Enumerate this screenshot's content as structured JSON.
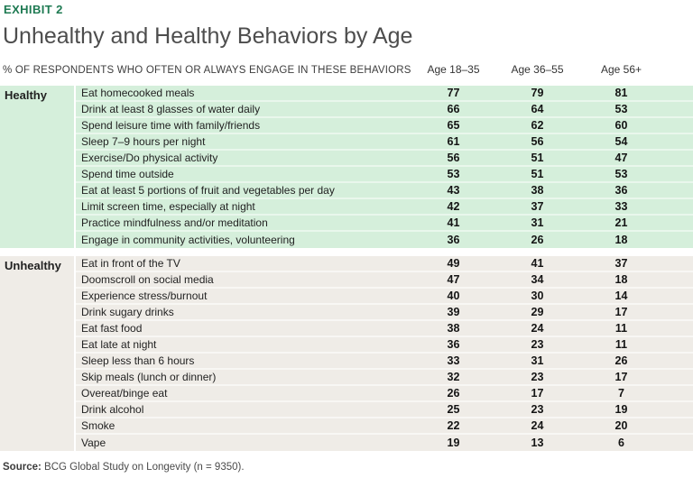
{
  "exhibit_label": "EXHIBIT 2",
  "title": "Unhealthy and Healthy Behaviors by Age",
  "table_header": "% OF RESPONDENTS WHO OFTEN OR ALWAYS ENGAGE IN THESE BEHAVIORS",
  "chart_data": {
    "type": "table",
    "title": "Unhealthy and Healthy Behaviors by Age",
    "subtitle": "% OF RESPONDENTS WHO OFTEN OR ALWAYS ENGAGE IN THESE BEHAVIORS",
    "columns": [
      "Age 18–35",
      "Age 36–55",
      "Age 56+"
    ],
    "sections": [
      {
        "label": "Healthy",
        "kind": "healthy",
        "rows": [
          {
            "behavior": "Eat homecooked meals",
            "values": [
              77,
              79,
              81
            ]
          },
          {
            "behavior": "Drink at least 8 glasses of water daily",
            "values": [
              66,
              64,
              53
            ]
          },
          {
            "behavior": "Spend leisure time with family/friends",
            "values": [
              65,
              62,
              60
            ]
          },
          {
            "behavior": "Sleep 7–9 hours per night",
            "values": [
              61,
              56,
              54
            ]
          },
          {
            "behavior": "Exercise/Do physical activity",
            "values": [
              56,
              51,
              47
            ]
          },
          {
            "behavior": "Spend time outside",
            "values": [
              53,
              51,
              53
            ]
          },
          {
            "behavior": "Eat at least 5 portions of fruit and vegetables per day",
            "values": [
              43,
              38,
              36
            ]
          },
          {
            "behavior": "Limit screen time, especially at night",
            "values": [
              42,
              37,
              33
            ]
          },
          {
            "behavior": "Practice mindfulness and/or meditation",
            "values": [
              41,
              31,
              21
            ]
          },
          {
            "behavior": "Engage in community activities, volunteering",
            "values": [
              36,
              26,
              18
            ]
          }
        ]
      },
      {
        "label": "Unhealthy",
        "kind": "unhealthy",
        "rows": [
          {
            "behavior": "Eat in front of the TV",
            "values": [
              49,
              41,
              37
            ]
          },
          {
            "behavior": "Doomscroll on social media",
            "values": [
              47,
              34,
              18
            ]
          },
          {
            "behavior": "Experience stress/burnout",
            "values": [
              40,
              30,
              14
            ]
          },
          {
            "behavior": "Drink sugary drinks",
            "values": [
              39,
              29,
              17
            ]
          },
          {
            "behavior": "Eat fast food",
            "values": [
              38,
              24,
              11
            ]
          },
          {
            "behavior": "Eat late at night",
            "values": [
              36,
              23,
              11
            ]
          },
          {
            "behavior": "Sleep less than 6 hours",
            "values": [
              33,
              31,
              26
            ]
          },
          {
            "behavior": "Skip meals (lunch or dinner)",
            "values": [
              32,
              23,
              17
            ]
          },
          {
            "behavior": "Overeat/binge eat",
            "values": [
              26,
              17,
              7
            ]
          },
          {
            "behavior": "Drink alcohol",
            "values": [
              25,
              23,
              19
            ]
          },
          {
            "behavior": "Smoke",
            "values": [
              22,
              24,
              20
            ]
          },
          {
            "behavior": "Vape",
            "values": [
              19,
              13,
              6
            ]
          }
        ]
      }
    ]
  },
  "source": {
    "prefix": "Source:",
    "text": "BCG Global Study on Longevity (n = 9350)."
  },
  "colors": {
    "exhibit_green": "#1e7a52",
    "title_gray": "#4d4d4d",
    "healthy_row_bg": "#d5efdb",
    "healthy_sep": "#e9f7ec",
    "unhealthy_row_bg": "#efece7",
    "unhealthy_sep": "#f8f7f4"
  }
}
